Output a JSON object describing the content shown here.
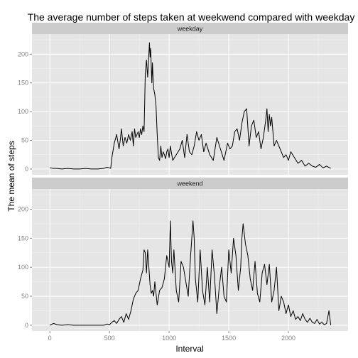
{
  "chart_data": {
    "type": "line",
    "title": "The average number of steps taken at weekwend compared with weekday",
    "xlabel": "Interval",
    "ylabel": "The mean of steps",
    "xlim": [
      -150,
      2500
    ],
    "ylim": [
      -10,
      235
    ],
    "x_ticks": [
      0,
      500,
      1000,
      1500,
      2000
    ],
    "x_tick_labels": [
      "0",
      "500",
      "1000",
      "1500",
      "2000"
    ],
    "y_ticks": [
      0,
      50,
      100,
      150,
      200
    ],
    "y_tick_labels": [
      "0",
      "50",
      "100",
      "150",
      "200"
    ],
    "grid": true,
    "panels": [
      {
        "name": "weekday",
        "x": [
          0,
          30,
          60,
          100,
          150,
          200,
          250,
          300,
          350,
          400,
          450,
          480,
          500,
          510,
          520,
          540,
          560,
          580,
          590,
          600,
          615,
          630,
          645,
          660,
          675,
          690,
          700,
          710,
          720,
          730,
          740,
          750,
          760,
          770,
          780,
          790,
          800,
          810,
          820,
          830,
          835,
          840,
          845,
          850,
          855,
          860,
          865,
          870,
          880,
          890,
          900,
          910,
          920,
          930,
          940,
          950,
          960,
          970,
          980,
          990,
          1000,
          1010,
          1030,
          1060,
          1090,
          1110,
          1130,
          1150,
          1170,
          1190,
          1210,
          1230,
          1250,
          1270,
          1290,
          1310,
          1340,
          1370,
          1400,
          1430,
          1460,
          1490,
          1510,
          1530,
          1550,
          1570,
          1590,
          1610,
          1630,
          1650,
          1670,
          1690,
          1710,
          1730,
          1750,
          1770,
          1790,
          1810,
          1820,
          1830,
          1840,
          1850,
          1860,
          1880,
          1900,
          1920,
          1940,
          1960,
          1980,
          2000,
          2020,
          2050,
          2080,
          2110,
          2140,
          2170,
          2200,
          2230,
          2260,
          2290,
          2320,
          2355
        ],
        "y": [
          2,
          1,
          1,
          0,
          1,
          0,
          0,
          1,
          0,
          0,
          1,
          3,
          2,
          1,
          20,
          45,
          60,
          35,
          50,
          70,
          40,
          55,
          45,
          60,
          50,
          65,
          40,
          70,
          55,
          60,
          65,
          55,
          70,
          60,
          75,
          65,
          165,
          190,
          160,
          200,
          220,
          195,
          210,
          180,
          150,
          185,
          160,
          140,
          130,
          110,
          60,
          20,
          15,
          40,
          20,
          30,
          25,
          18,
          30,
          35,
          20,
          40,
          15,
          25,
          35,
          50,
          20,
          60,
          30,
          25,
          40,
          65,
          50,
          60,
          30,
          45,
          25,
          15,
          55,
          35,
          15,
          45,
          35,
          40,
          65,
          70,
          50,
          80,
          100,
          105,
          40,
          75,
          85,
          55,
          65,
          35,
          55,
          85,
          105,
          65,
          95,
          75,
          90,
          40,
          50,
          40,
          30,
          20,
          25,
          15,
          30,
          20,
          10,
          15,
          5,
          10,
          5,
          3,
          8,
          2,
          5,
          1
        ]
      },
      {
        "name": "weekend",
        "x": [
          0,
          30,
          60,
          100,
          150,
          200,
          250,
          300,
          350,
          400,
          450,
          480,
          500,
          520,
          540,
          560,
          580,
          600,
          620,
          640,
          660,
          680,
          700,
          720,
          740,
          760,
          780,
          790,
          800,
          810,
          820,
          830,
          840,
          850,
          860,
          870,
          880,
          890,
          900,
          920,
          940,
          960,
          980,
          1000,
          1010,
          1020,
          1030,
          1040,
          1060,
          1080,
          1100,
          1120,
          1140,
          1160,
          1180,
          1200,
          1210,
          1220,
          1240,
          1260,
          1280,
          1300,
          1320,
          1340,
          1360,
          1380,
          1400,
          1420,
          1440,
          1460,
          1480,
          1500,
          1510,
          1520,
          1540,
          1560,
          1580,
          1600,
          1610,
          1620,
          1640,
          1660,
          1680,
          1700,
          1720,
          1740,
          1760,
          1780,
          1800,
          1820,
          1840,
          1860,
          1880,
          1900,
          1920,
          1940,
          1960,
          1980,
          2000,
          2020,
          2040,
          2060,
          2080,
          2100,
          2120,
          2140,
          2160,
          2180,
          2200,
          2220,
          2240,
          2260,
          2280,
          2300,
          2320,
          2340,
          2355
        ],
        "y": [
          0,
          3,
          1,
          0,
          1,
          0,
          0,
          0,
          0,
          0,
          0,
          2,
          1,
          5,
          8,
          3,
          10,
          15,
          5,
          20,
          10,
          25,
          45,
          55,
          60,
          80,
          95,
          130,
          125,
          90,
          130,
          100,
          70,
          55,
          60,
          50,
          75,
          55,
          35,
          60,
          65,
          80,
          120,
          100,
          180,
          110,
          90,
          130,
          60,
          40,
          110,
          100,
          75,
          50,
          120,
          180,
          150,
          80,
          40,
          130,
          60,
          35,
          100,
          40,
          130,
          85,
          20,
          65,
          100,
          50,
          40,
          130,
          110,
          90,
          150,
          120,
          60,
          100,
          150,
          175,
          140,
          120,
          80,
          60,
          110,
          55,
          40,
          90,
          105,
          70,
          105,
          40,
          60,
          100,
          25,
          50,
          40,
          20,
          35,
          15,
          25,
          10,
          15,
          8,
          20,
          10,
          5,
          12,
          5,
          3,
          10,
          2,
          5,
          1,
          3,
          25,
          0
        ]
      }
    ]
  }
}
